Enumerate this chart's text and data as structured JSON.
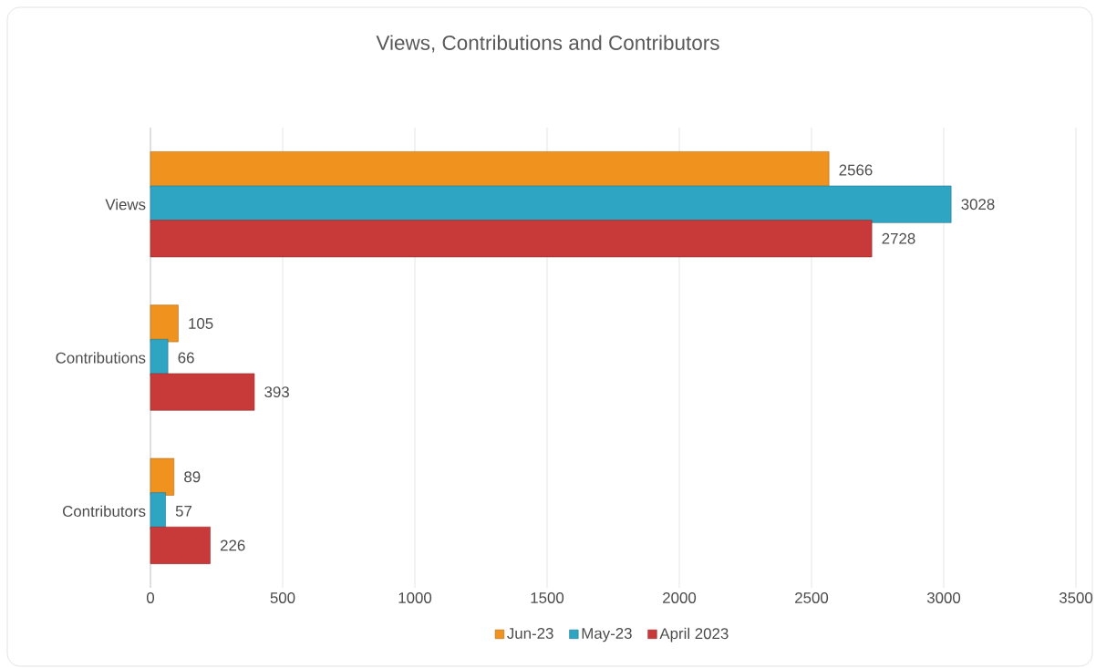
{
  "chart_data": {
    "type": "bar",
    "orientation": "horizontal",
    "title": "Views, Contributions and Contributors",
    "categories": [
      "Views",
      "Contributions",
      "Contributors"
    ],
    "series": [
      {
        "name": "Jun-23",
        "color": "#f0921e",
        "values": [
          2566,
          105,
          89
        ]
      },
      {
        "name": "May-23",
        "color": "#2fa5c4",
        "values": [
          3028,
          66,
          57
        ]
      },
      {
        "name": "April 2023",
        "color": "#c83a3a",
        "values": [
          2728,
          393,
          226
        ]
      }
    ],
    "xlim": [
      0,
      3500
    ],
    "xticks": [
      0,
      500,
      1000,
      1500,
      2000,
      2500,
      3000,
      3500
    ],
    "grid": "x",
    "legend": "bottom",
    "data_labels": true
  }
}
